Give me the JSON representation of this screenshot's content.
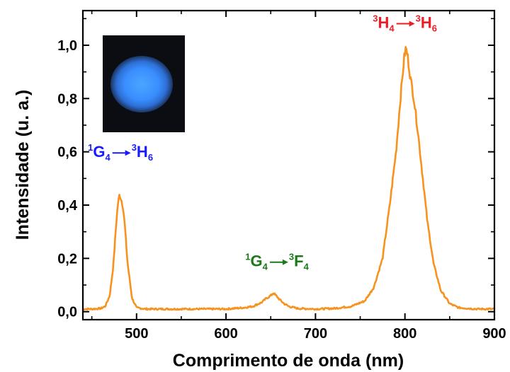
{
  "chart_data": {
    "type": "line",
    "xlabel": "Comprimento de onda (nm)",
    "ylabel": "Intensidade (u. a.)",
    "xlim": [
      440,
      900
    ],
    "ylim": [
      -0.03,
      1.13
    ],
    "x_ticks": [
      500,
      600,
      700,
      800,
      900
    ],
    "x_tick_labels": [
      "500",
      "600",
      "700",
      "800",
      "900"
    ],
    "y_ticks": [
      0.0,
      0.2,
      0.4,
      0.6,
      0.8,
      1.0
    ],
    "y_tick_labels": [
      "0,0",
      "0,2",
      "0,4",
      "0,6",
      "0,8",
      "1,0"
    ],
    "grid": false,
    "legend": "none",
    "inset": "blue-emission-photo",
    "series": [
      {
        "color": "#f7921e",
        "x": [
          440,
          450,
          460,
          465,
          470,
          474,
          477,
          479,
          481,
          483,
          485,
          487,
          490,
          495,
          500,
          510,
          520,
          540,
          560,
          580,
          600,
          620,
          630,
          640,
          645,
          650,
          653,
          656,
          660,
          665,
          670,
          680,
          700,
          720,
          740,
          755,
          765,
          775,
          783,
          790,
          795,
          799,
          801,
          803,
          806,
          810,
          815,
          820,
          825,
          832,
          840,
          850,
          860,
          880,
          900
        ],
        "y": [
          0.01,
          0.01,
          0.012,
          0.02,
          0.06,
          0.17,
          0.32,
          0.4,
          0.44,
          0.42,
          0.39,
          0.32,
          0.18,
          0.05,
          0.015,
          0.01,
          0.01,
          0.01,
          0.01,
          0.01,
          0.01,
          0.015,
          0.02,
          0.035,
          0.05,
          0.06,
          0.07,
          0.06,
          0.045,
          0.03,
          0.02,
          0.012,
          0.01,
          0.012,
          0.02,
          0.04,
          0.09,
          0.2,
          0.4,
          0.6,
          0.8,
          0.95,
          0.99,
          0.96,
          0.88,
          0.8,
          0.66,
          0.5,
          0.34,
          0.18,
          0.08,
          0.03,
          0.015,
          0.01,
          0.01
        ]
      }
    ],
    "annotations": [
      {
        "name": "blue",
        "base1": "G",
        "sup1": "1",
        "sub1": "4",
        "base2": "H",
        "sup2": "3",
        "sub2": "6",
        "color": "#1a1aff",
        "x": 482,
        "y": 0.58
      },
      {
        "name": "green",
        "base1": "G",
        "sup1": "1",
        "sub1": "4",
        "base2": "F",
        "sup2": "3",
        "sub2": "4",
        "color": "#1a7a1a",
        "x": 657,
        "y": 0.17
      },
      {
        "name": "red",
        "base1": "H",
        "sup1": "3",
        "sub1": "4",
        "base2": "H",
        "sup2": "3",
        "sub2": "6",
        "color": "#ee1c24",
        "x": 800,
        "y": 1.065
      }
    ]
  }
}
